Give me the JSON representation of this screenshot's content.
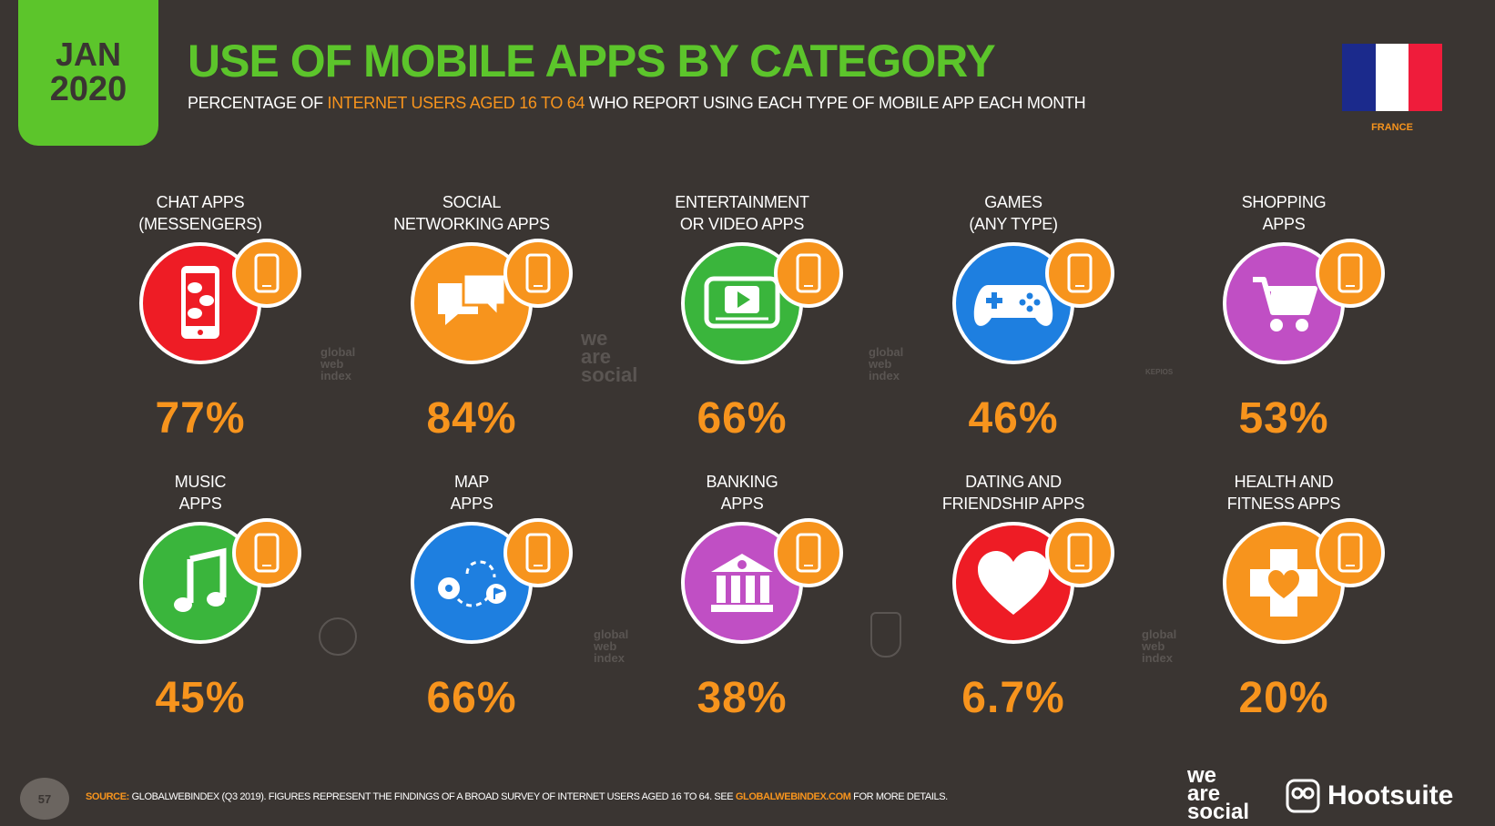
{
  "header": {
    "date_month": "JAN",
    "date_year": "2020",
    "title": "USE OF MOBILE APPS BY CATEGORY",
    "subtitle_pre": "PERCENTAGE OF ",
    "subtitle_highlight": "INTERNET USERS AGED 16 TO 64",
    "subtitle_post": " WHO REPORT USING EACH TYPE OF MOBILE APP EACH MONTH",
    "country": "FRANCE",
    "flag_colors": [
      "#1b2a8c",
      "#ffffff",
      "#ef1c3b"
    ]
  },
  "colors": {
    "background": "#3a3532",
    "accent_green": "#5cc52b",
    "accent_orange": "#f7941d"
  },
  "categories": [
    {
      "label": "CHAT APPS\n(MESSENGERS)",
      "value": "77%",
      "icon": "chat-phone-icon",
      "color": "#ee1c25"
    },
    {
      "label": "SOCIAL\nNETWORKING APPS",
      "value": "84%",
      "icon": "speech-bubbles-icon",
      "color": "#f7941d"
    },
    {
      "label": "ENTERTAINMENT\nOR VIDEO APPS",
      "value": "66%",
      "icon": "video-play-icon",
      "color": "#3ab53c"
    },
    {
      "label": "GAMES\n(ANY TYPE)",
      "value": "46%",
      "icon": "gamepad-icon",
      "color": "#1e7fe0"
    },
    {
      "label": "SHOPPING\nAPPS",
      "value": "53%",
      "icon": "shopping-cart-icon",
      "color": "#c04fc4"
    },
    {
      "label": "MUSIC\nAPPS",
      "value": "45%",
      "icon": "music-note-icon",
      "color": "#3ab53c"
    },
    {
      "label": "MAP\nAPPS",
      "value": "66%",
      "icon": "map-route-icon",
      "color": "#1e7fe0"
    },
    {
      "label": "BANKING\nAPPS",
      "value": "38%",
      "icon": "bank-icon",
      "color": "#c04fc4"
    },
    {
      "label": "DATING AND\nFRIENDSHIP APPS",
      "value": "6.7%",
      "icon": "heart-icon",
      "color": "#ee1c25"
    },
    {
      "label": "HEALTH AND\nFITNESS APPS",
      "value": "20%",
      "icon": "health-cross-icon",
      "color": "#f7941d"
    }
  ],
  "watermarks": {
    "gwi": "global\nweb\nindex",
    "was": "we\nare\nsocial",
    "kepios": "KEPIOS"
  },
  "footer": {
    "page_number": "57",
    "source_label": "SOURCE:",
    "source_text": " GLOBALWEBINDEX (Q3 2019). FIGURES REPRESENT THE FINDINGS OF A BROAD SURVEY OF INTERNET USERS AGED 16 TO 64. SEE ",
    "source_link": "GLOBALWEBINDEX.COM",
    "source_post": " FOR MORE DETAILS.",
    "brand_1": "we\nare\nsocial",
    "brand_2": "Hootsuite"
  }
}
